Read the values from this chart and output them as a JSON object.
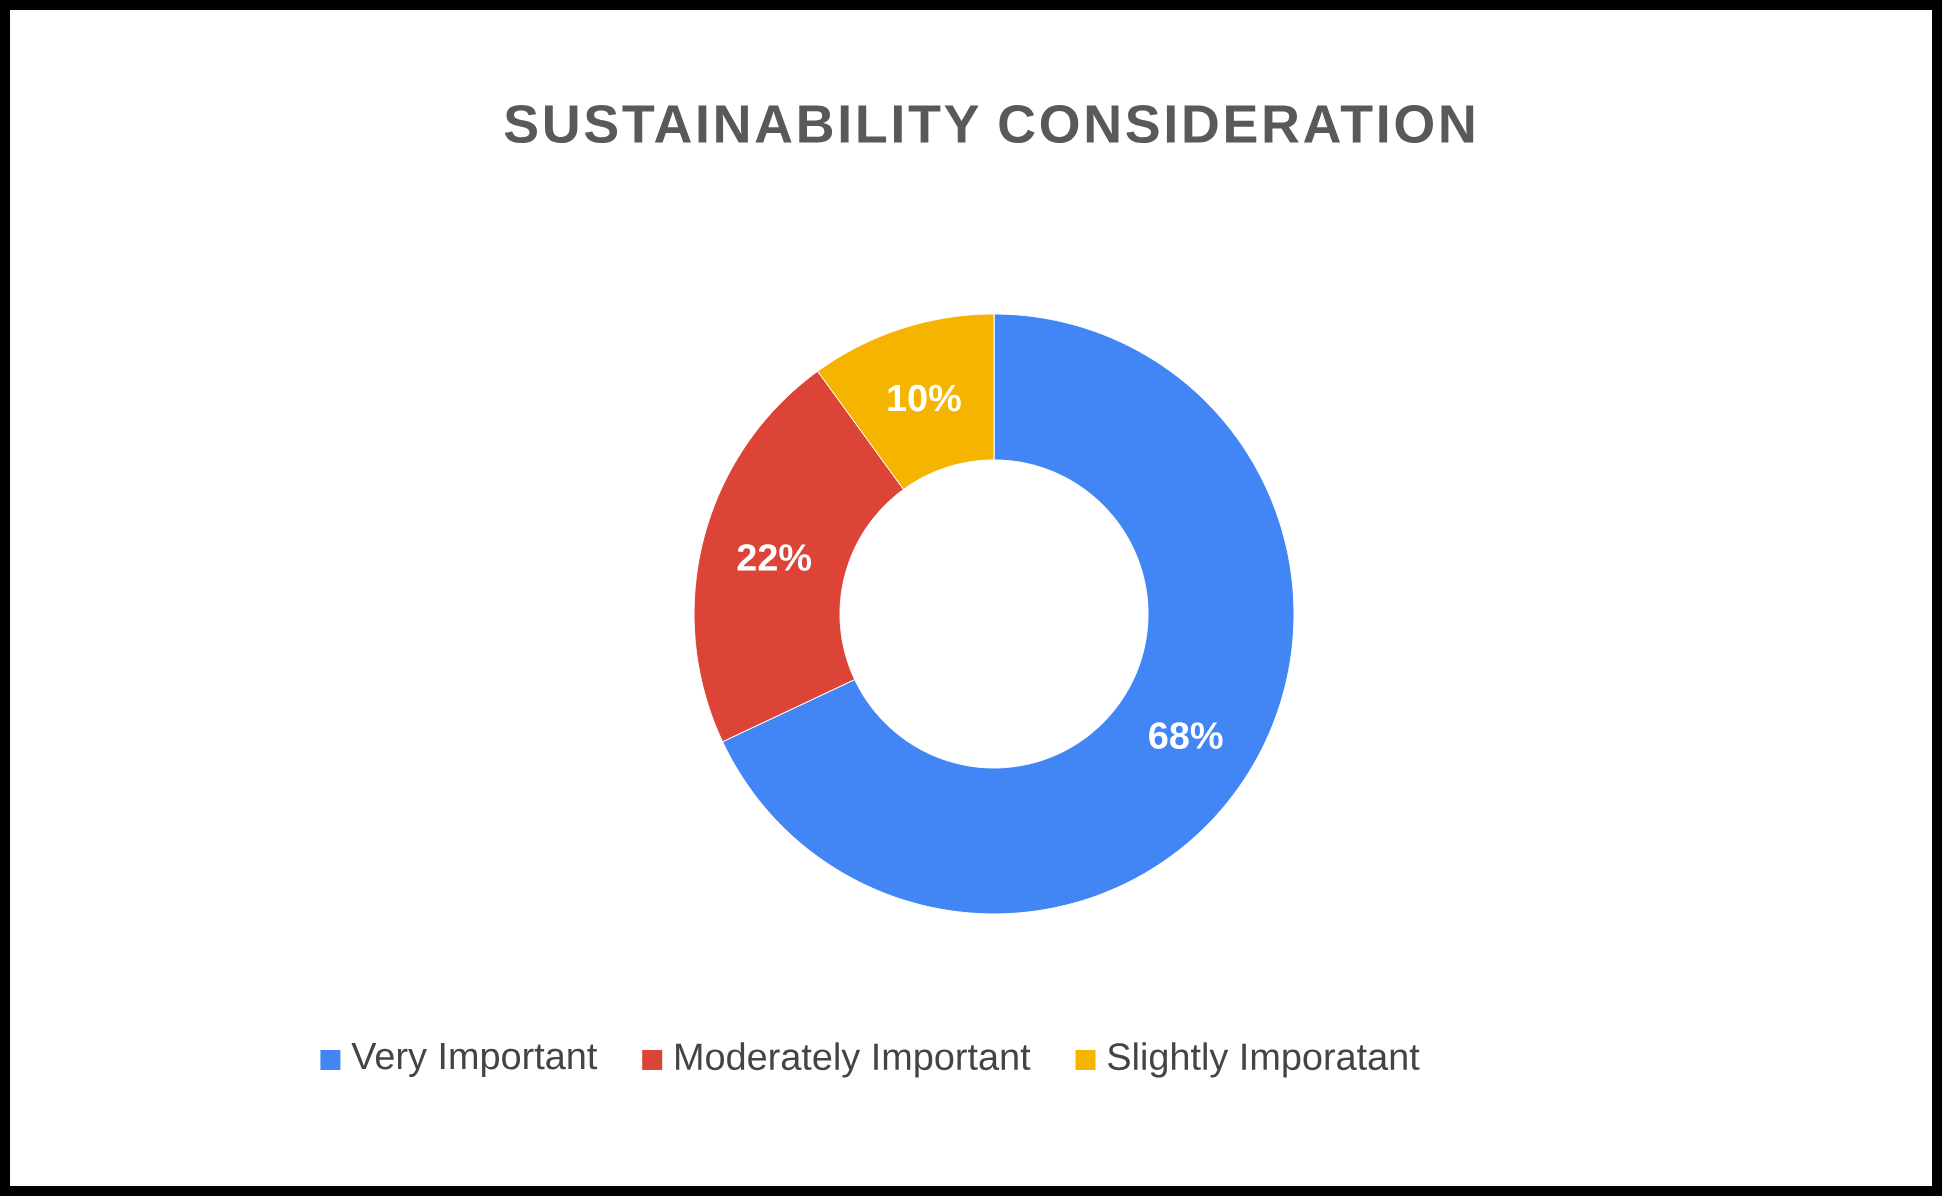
{
  "chart_data": {
    "type": "donut",
    "title": "SUSTAINABILITY  CONSIDERATION",
    "categories": [
      "Very Important",
      "Moderately Important",
      "Slightly Imporatant"
    ],
    "values": [
      68,
      22,
      10
    ],
    "colors": [
      "#4285f4",
      "#db4437",
      "#f4b400"
    ],
    "value_labels": [
      "68%",
      "22%",
      "10%"
    ],
    "legend": "bottom"
  }
}
